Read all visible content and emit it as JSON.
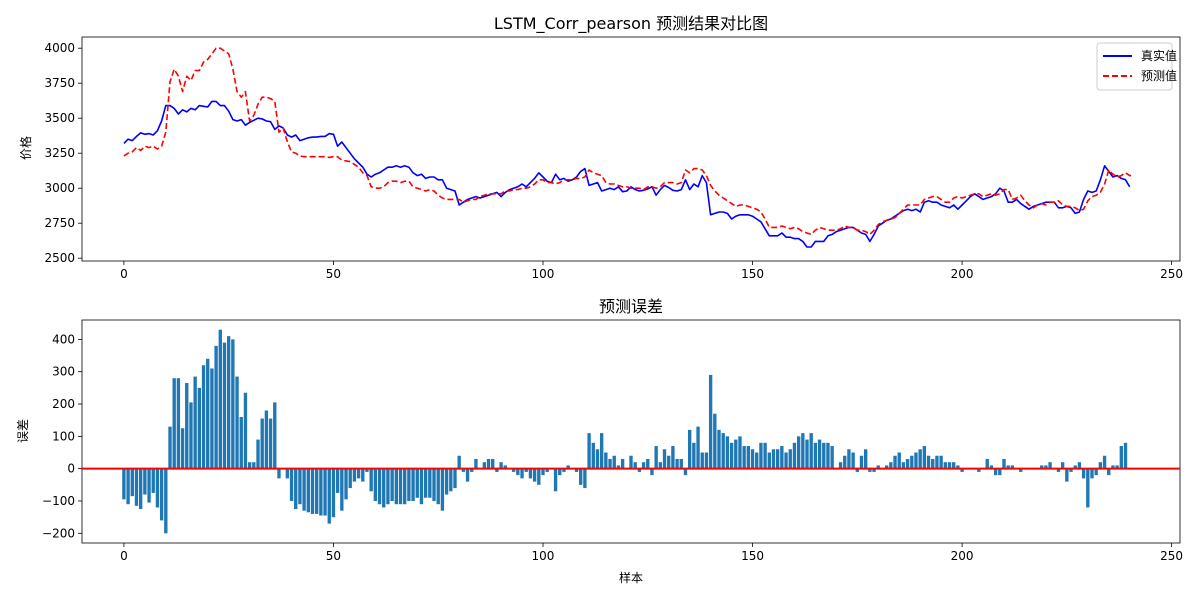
{
  "chart_data": [
    {
      "type": "line",
      "title": "LSTM_Corr_pearson 预测结果对比图",
      "xlabel": "",
      "ylabel": "价格",
      "xlim": [
        -10,
        252
      ],
      "ylim": [
        2480,
        4080
      ],
      "xticks": [
        0,
        50,
        100,
        150,
        200,
        250
      ],
      "yticks": [
        2500,
        2750,
        3000,
        3250,
        3500,
        3750,
        4000
      ],
      "legend_position": "top-right",
      "series": [
        {
          "name": "真实值",
          "color": "#0000ff",
          "style": "solid",
          "values": [
            3320,
            3350,
            3340,
            3370,
            3395,
            3385,
            3390,
            3380,
            3410,
            3480,
            3590,
            3590,
            3570,
            3530,
            3560,
            3545,
            3570,
            3560,
            3590,
            3585,
            3580,
            3620,
            3620,
            3590,
            3590,
            3550,
            3490,
            3480,
            3490,
            3450,
            3470,
            3485,
            3500,
            3495,
            3480,
            3475,
            3420,
            3445,
            3430,
            3380,
            3365,
            3380,
            3340,
            3350,
            3360,
            3365,
            3365,
            3370,
            3370,
            3390,
            3385,
            3300,
            3330,
            3290,
            3250,
            3210,
            3180,
            3150,
            3100,
            3080,
            3100,
            3110,
            3130,
            3150,
            3150,
            3160,
            3150,
            3160,
            3150,
            3110,
            3090,
            3100,
            3070,
            3080,
            3080,
            3060,
            3060,
            3000,
            2990,
            2980,
            2880,
            2900,
            2920,
            2930,
            2940,
            2930,
            2940,
            2950,
            2960,
            2970,
            2940,
            2970,
            2990,
            3000,
            3010,
            3030,
            3010,
            3040,
            3070,
            3110,
            3080,
            3050,
            3040,
            3100,
            3060,
            3070,
            3050,
            3060,
            3080,
            3120,
            3140,
            3020,
            3030,
            3040,
            2980,
            2990,
            3000,
            2990,
            3010,
            2975,
            2980,
            3010,
            2990,
            2980,
            2985,
            2995,
            3010,
            2950,
            2990,
            3020,
            3005,
            2985,
            2980,
            2990,
            3060,
            2990,
            3030,
            3010,
            3090,
            3040,
            2810,
            2820,
            2830,
            2830,
            2820,
            2780,
            2800,
            2810,
            2810,
            2810,
            2800,
            2780,
            2760,
            2710,
            2660,
            2660,
            2660,
            2680,
            2650,
            2650,
            2640,
            2640,
            2620,
            2580,
            2580,
            2620,
            2620,
            2620,
            2660,
            2670,
            2690,
            2700,
            2710,
            2720,
            2720,
            2700,
            2680,
            2670,
            2620,
            2670,
            2730,
            2750,
            2770,
            2780,
            2800,
            2820,
            2840,
            2850,
            2840,
            2850,
            2830,
            2900,
            2910,
            2900,
            2900,
            2880,
            2870,
            2860,
            2880,
            2850,
            2880,
            2910,
            2940,
            2960,
            2940,
            2920,
            2930,
            2940,
            2960,
            3000,
            2980,
            2900,
            2900,
            2920,
            2890,
            2870,
            2850,
            2870,
            2880,
            2890,
            2900,
            2900,
            2900,
            2860,
            2860,
            2870,
            2860,
            2820,
            2830,
            2920,
            2980,
            2970,
            2980,
            3060,
            3160,
            3120,
            3080,
            3090,
            3070,
            3060,
            3010
          ]
        },
        {
          "name": "预测值",
          "color": "#ff0000",
          "style": "dashed",
          "values": [
            3230,
            3250,
            3260,
            3290,
            3270,
            3300,
            3290,
            3300,
            3280,
            3300,
            3400,
            3760,
            3850,
            3800,
            3690,
            3800,
            3770,
            3840,
            3840,
            3900,
            3920,
            3960,
            4000,
            4000,
            3980,
            3960,
            3850,
            3690,
            3650,
            3690,
            3480,
            3520,
            3600,
            3650,
            3650,
            3640,
            3620,
            3400,
            3430,
            3330,
            3260,
            3250,
            3230,
            3225,
            3225,
            3225,
            3225,
            3225,
            3225,
            3220,
            3225,
            3225,
            3200,
            3195,
            3190,
            3170,
            3150,
            3110,
            3090,
            3010,
            3000,
            3000,
            3010,
            3040,
            3050,
            3050,
            3040,
            3050,
            3050,
            3010,
            3000,
            2990,
            2980,
            2990,
            2980,
            2950,
            2930,
            2920,
            2920,
            2920,
            2920,
            2900,
            2910,
            2920,
            2920,
            2940,
            2950,
            2960,
            2960,
            2960,
            2960,
            2980,
            2980,
            2990,
            2990,
            3000,
            3000,
            3010,
            3030,
            3060,
            3060,
            3040,
            3040,
            3030,
            3040,
            3060,
            3060,
            3060,
            3070,
            3070,
            3080,
            3130,
            3110,
            3100,
            3090,
            3040,
            3030,
            3030,
            3020,
            3010,
            3010,
            3000,
            3000,
            3000,
            2990,
            3010,
            3010,
            3000,
            3010,
            3040,
            3040,
            3040,
            3030,
            3040,
            3130,
            3110,
            3140,
            3140,
            3130,
            3090,
            3020,
            2980,
            2950,
            2930,
            2910,
            2890,
            2870,
            2880,
            2880,
            2870,
            2860,
            2850,
            2830,
            2780,
            2720,
            2720,
            2720,
            2730,
            2720,
            2710,
            2720,
            2710,
            2690,
            2680,
            2670,
            2700,
            2720,
            2710,
            2700,
            2700,
            2700,
            2710,
            2730,
            2720,
            2720,
            2700,
            2700,
            2690,
            2670,
            2700,
            2740,
            2760,
            2770,
            2780,
            2790,
            2820,
            2850,
            2880,
            2880,
            2880,
            2880,
            2920,
            2930,
            2940,
            2940,
            2920,
            2900,
            2900,
            2930,
            2940,
            2930,
            2940,
            2950,
            2960,
            2960,
            2940,
            2950,
            2960,
            2950,
            2960,
            2990,
            2990,
            2920,
            2930,
            2950,
            2910,
            2880,
            2860,
            2880,
            2890,
            2880,
            2900,
            2900,
            2910,
            2880,
            2870,
            2870,
            2860,
            2840,
            2850,
            2910,
            2940,
            2950,
            2970,
            3030,
            3130,
            3100,
            3080,
            3090,
            3110,
            3090,
            3090
          ]
        }
      ]
    },
    {
      "type": "bar",
      "title": "预测误差",
      "xlabel": "样本",
      "ylabel": "误差",
      "xlim": [
        -10,
        252
      ],
      "ylim": [
        -230,
        460
      ],
      "xticks": [
        0,
        50,
        100,
        150,
        200,
        250
      ],
      "yticks": [
        -200,
        -100,
        0,
        100,
        200,
        300,
        400
      ],
      "bar_color": "#1f77b4",
      "zero_line_color": "#ff0000",
      "values": [
        -95,
        -110,
        -85,
        -115,
        -125,
        -80,
        -105,
        -75,
        -120,
        -160,
        -200,
        130,
        280,
        280,
        125,
        265,
        205,
        285,
        250,
        320,
        340,
        310,
        380,
        430,
        390,
        410,
        400,
        285,
        160,
        235,
        20,
        20,
        90,
        155,
        180,
        155,
        205,
        -30,
        0,
        -30,
        -100,
        -125,
        -110,
        -130,
        -135,
        -140,
        -140,
        -145,
        -145,
        -170,
        -150,
        -75,
        -130,
        -95,
        -60,
        -40,
        -30,
        -40,
        -10,
        -70,
        -100,
        -110,
        -120,
        -110,
        -100,
        -110,
        -110,
        -110,
        -100,
        -100,
        -90,
        -110,
        -90,
        -90,
        -100,
        -110,
        -130,
        -80,
        -70,
        -60,
        40,
        -10,
        -40,
        -10,
        30,
        0,
        20,
        30,
        30,
        -10,
        20,
        10,
        0,
        -10,
        -20,
        -30,
        -10,
        -30,
        -40,
        -50,
        -20,
        -10,
        0,
        -70,
        -20,
        -10,
        10,
        0,
        -10,
        -50,
        -60,
        110,
        80,
        60,
        110,
        50,
        30,
        40,
        10,
        30,
        0,
        40,
        20,
        -10,
        20,
        30,
        -20,
        70,
        20,
        60,
        40,
        70,
        30,
        30,
        -20,
        120,
        80,
        130,
        50,
        50,
        290,
        170,
        120,
        110,
        100,
        80,
        90,
        100,
        70,
        70,
        60,
        50,
        80,
        80,
        50,
        60,
        60,
        70,
        50,
        60,
        80,
        100,
        110,
        90,
        110,
        80,
        90,
        80,
        80,
        70,
        0,
        20,
        40,
        60,
        50,
        -10,
        40,
        60,
        -10,
        -10,
        10,
        0,
        10,
        20,
        40,
        50,
        20,
        30,
        40,
        50,
        60,
        70,
        40,
        30,
        40,
        40,
        20,
        20,
        20,
        10,
        -10,
        0,
        0,
        0,
        -10,
        0,
        30,
        10,
        -20,
        -20,
        30,
        10,
        10,
        0,
        -10,
        0,
        0,
        0,
        0,
        10,
        10,
        20,
        0,
        -10,
        20,
        -40,
        -10,
        10,
        20,
        -30,
        -120,
        -30,
        -20,
        20,
        40,
        -20,
        10,
        10,
        70,
        80
      ]
    }
  ]
}
